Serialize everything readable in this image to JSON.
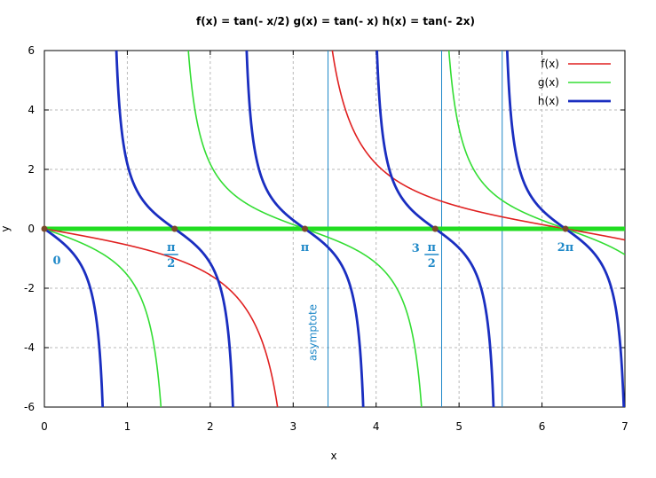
{
  "chart_data": {
    "type": "line",
    "title": "f(x) =  tan(- x/2)  g(x) =   tan(- x)   h(x) =  tan(- 2x)",
    "xlabel": "x",
    "ylabel": "y",
    "xlim": [
      0,
      7
    ],
    "ylim": [
      -6,
      6
    ],
    "grid": true,
    "legend_position": "top-right",
    "x_ticks": [
      "0",
      "1",
      "2",
      "3",
      "4",
      "5",
      "6",
      "7"
    ],
    "y_ticks": [
      "-6",
      "-4",
      "-2",
      "0",
      "2",
      "4",
      "6"
    ],
    "series": [
      {
        "name": "f(x)",
        "expression": "tan(-x/2)",
        "color": "#e02020"
      },
      {
        "name": "g(x)",
        "expression": "tan(-x)",
        "color": "#33dd33"
      },
      {
        "name": "h(x)",
        "expression": "tan(-2x)",
        "color": "#1a2ec0"
      }
    ],
    "zero_line": {
      "y": 0,
      "color": "#22dd22"
    },
    "asymptotes_x": [
      3.42,
      4.79,
      5.52
    ],
    "asymptote_label": "asymptote",
    "pi_markers": [
      {
        "x": 0,
        "label": "0"
      },
      {
        "x": 1.5708,
        "label_top": "π",
        "label_bottom": "2"
      },
      {
        "x": 3.1416,
        "label": "π"
      },
      {
        "x": 4.7124,
        "label_prefix": "3",
        "label_top": "π",
        "label_bottom": "2"
      },
      {
        "x": 6.2832,
        "label": "2π"
      }
    ],
    "zero_points": [
      0,
      1.5708,
      3.1416,
      4.7124,
      6.2832
    ]
  }
}
